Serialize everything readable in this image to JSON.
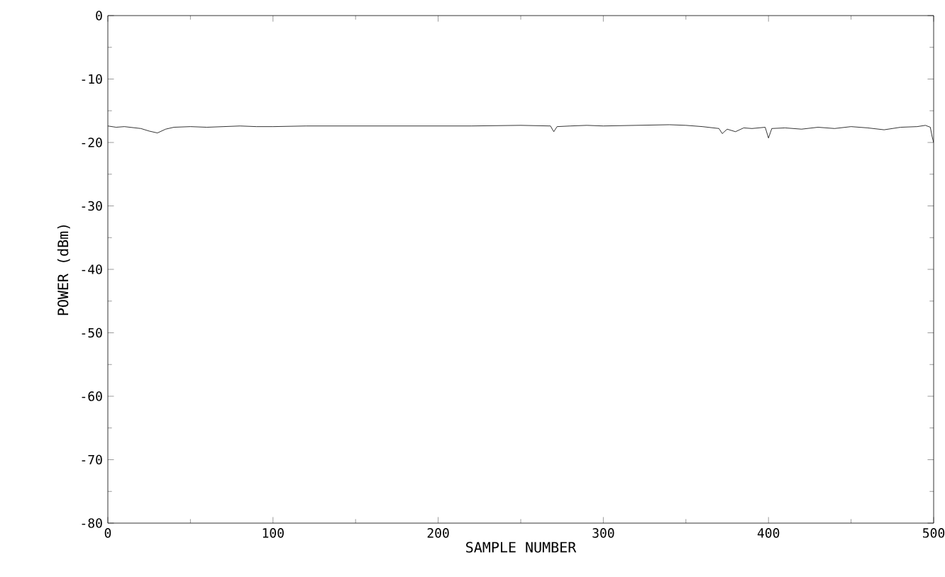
{
  "chart_data": {
    "type": "line",
    "xlabel": "SAMPLE NUMBER",
    "ylabel": "POWER (dBm)",
    "xlim": [
      0,
      500
    ],
    "ylim": [
      -80,
      0
    ],
    "xticks": [
      0,
      100,
      200,
      300,
      400,
      500
    ],
    "yticks": [
      -80,
      -70,
      -60,
      -50,
      -40,
      -30,
      -20,
      -10,
      0
    ],
    "color": "#000000",
    "x": [
      0,
      5,
      10,
      20,
      25,
      30,
      35,
      40,
      50,
      60,
      70,
      80,
      90,
      100,
      120,
      150,
      180,
      200,
      220,
      250,
      268,
      270,
      272,
      280,
      290,
      300,
      320,
      340,
      350,
      360,
      370,
      372,
      375,
      380,
      385,
      390,
      398,
      400,
      402,
      410,
      420,
      430,
      440,
      450,
      460,
      470,
      480,
      490,
      495,
      498,
      499,
      500
    ],
    "values": [
      -17.4,
      -17.6,
      -17.5,
      -17.8,
      -18.2,
      -18.5,
      -17.9,
      -17.6,
      -17.5,
      -17.6,
      -17.5,
      -17.4,
      -17.5,
      -17.5,
      -17.4,
      -17.4,
      -17.4,
      -17.4,
      -17.4,
      -17.3,
      -17.4,
      -18.3,
      -17.5,
      -17.4,
      -17.3,
      -17.4,
      -17.3,
      -17.2,
      -17.3,
      -17.5,
      -17.8,
      -18.6,
      -17.9,
      -18.3,
      -17.7,
      -17.8,
      -17.6,
      -19.3,
      -17.8,
      -17.7,
      -17.9,
      -17.6,
      -17.8,
      -17.5,
      -17.7,
      -18,
      -17.6,
      -17.5,
      -17.3,
      -17.6,
      -19,
      -20
    ]
  }
}
